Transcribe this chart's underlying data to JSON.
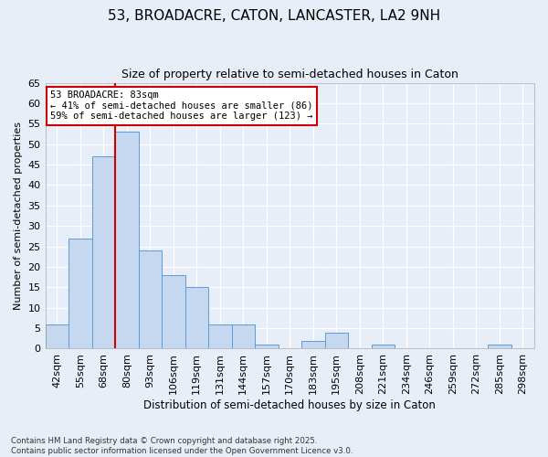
{
  "title": "53, BROADACRE, CATON, LANCASTER, LA2 9NH",
  "subtitle": "Size of property relative to semi-detached houses in Caton",
  "xlabel": "Distribution of semi-detached houses by size in Caton",
  "ylabel": "Number of semi-detached properties",
  "categories": [
    "42sqm",
    "55sqm",
    "68sqm",
    "80sqm",
    "93sqm",
    "106sqm",
    "119sqm",
    "131sqm",
    "144sqm",
    "157sqm",
    "170sqm",
    "183sqm",
    "195sqm",
    "208sqm",
    "221sqm",
    "234sqm",
    "246sqm",
    "259sqm",
    "272sqm",
    "285sqm",
    "298sqm"
  ],
  "values": [
    6,
    27,
    47,
    53,
    24,
    18,
    15,
    6,
    6,
    1,
    0,
    2,
    4,
    0,
    1,
    0,
    0,
    0,
    0,
    1,
    0
  ],
  "bar_color": "#c5d8f0",
  "bar_edge_color": "#5b9bd5",
  "ylim": [
    0,
    65
  ],
  "yticks": [
    0,
    5,
    10,
    15,
    20,
    25,
    30,
    35,
    40,
    45,
    50,
    55,
    60,
    65
  ],
  "vline_x_index": 3,
  "property_sqm": 83,
  "property_label": "53 BROADACRE: 83sqm",
  "pct_smaller": 41,
  "pct_larger": 59,
  "n_smaller": 86,
  "n_larger": 123,
  "vline_color": "#cc0000",
  "annotation_box_color": "#cc0000",
  "background_color": "#e8eef8",
  "grid_color": "#ffffff",
  "footnote": "Contains HM Land Registry data © Crown copyright and database right 2025.\nContains public sector information licensed under the Open Government Licence v3.0."
}
